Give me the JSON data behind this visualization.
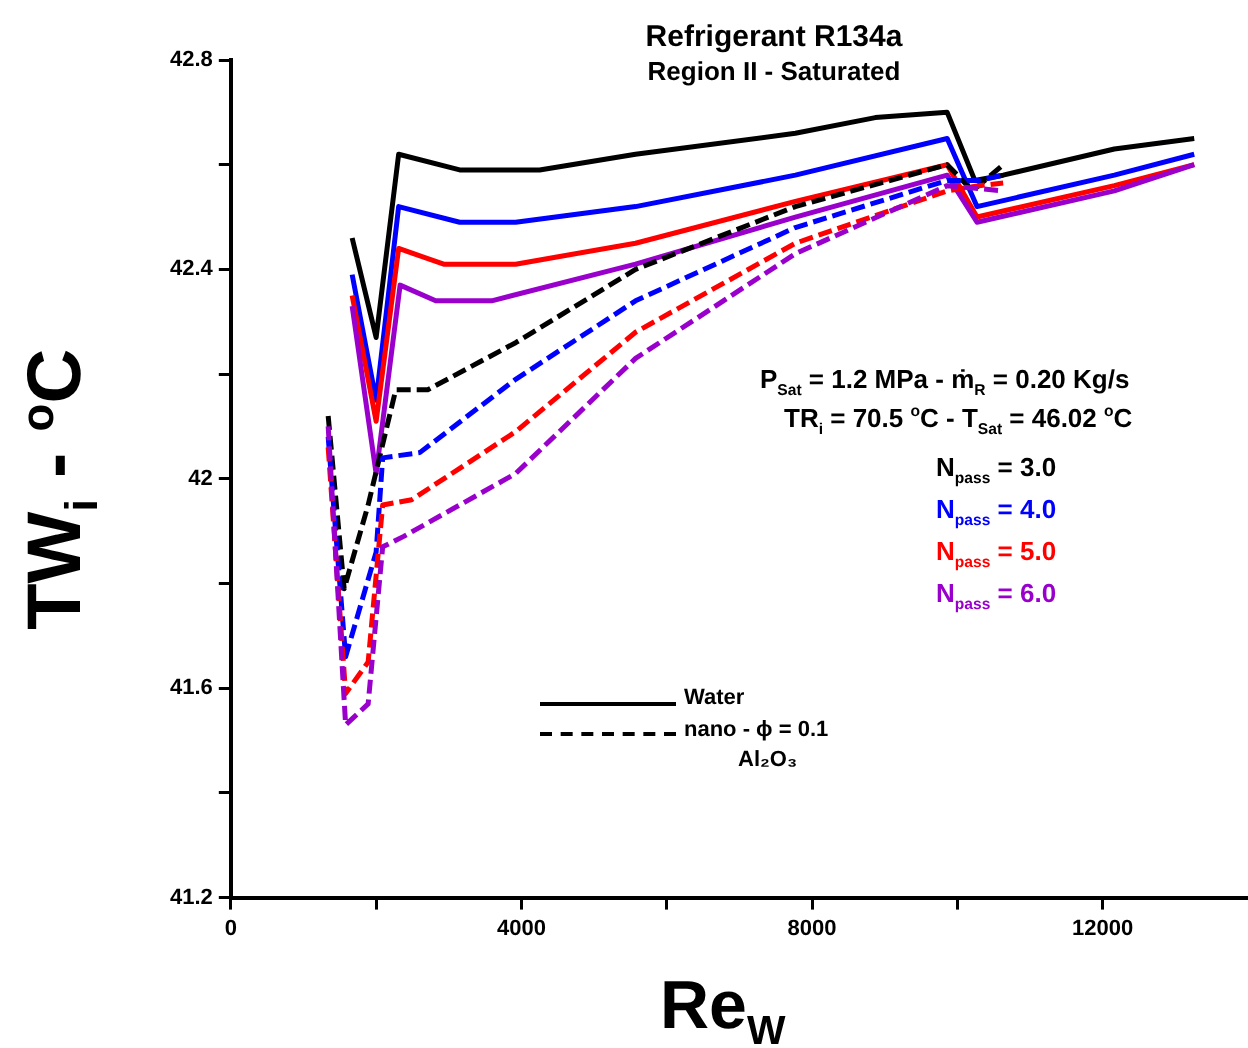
{
  "chart_data": {
    "type": "line",
    "title": "Refrigerant R134a",
    "subtitle": "Region II - Saturated",
    "xlabel": "Re$_{W}$",
    "ylabel": "TW$_{i}$ - $^{o}$C",
    "xlim": [
      0,
      14000
    ],
    "xticks": [
      0,
      {
        "value": 2000,
        "label": null
      },
      4000,
      {
        "value": 6000,
        "label": null
      },
      8000,
      {
        "value": 10000,
        "label": null
      },
      12000
    ],
    "ylim": [
      41.2,
      42.8
    ],
    "yticks": [
      41.2,
      {
        "value": 41.4,
        "label": null
      },
      41.6,
      {
        "value": 41.8,
        "label": null
      },
      42,
      {
        "value": 42.2,
        "label": null
      },
      42.4,
      {
        "value": 42.6,
        "label": null
      },
      42.8
    ],
    "grid": false,
    "legend": "right",
    "marker": "none",
    "annotations": [
      "P$_{Sat}$ = 1.2 MPa  - ṁ$_{R}$ = 0.20 Kg/s",
      "TR$_{i}$ = 70.5 $^{o}$C - T$_{Sat}$ = 46.02 $^{o}$C",
      "Water",
      "nano - ϕ = 0.1",
      "Al₂O₃"
    ],
    "series": [
      {
        "name": "N$_{pass}$ = 3.0",
        "color": "#000000",
        "line_style": "solid",
        "x": [
          1670,
          2000,
          2310,
          3150,
          4250,
          5570,
          7770,
          8870,
          9860,
          10240,
          10630,
          12160,
          13260
        ],
        "values": [
          42.46,
          42.27,
          42.62,
          42.59,
          42.59,
          42.62,
          42.66,
          42.69,
          42.7,
          42.57,
          42.58,
          42.63,
          42.65
        ]
      },
      {
        "name": "N$_{pass}$ = 4.0",
        "color": "#0000ff",
        "line_style": "solid",
        "x": [
          1670,
          2000,
          2310,
          3150,
          3920,
          5570,
          7770,
          9860,
          10270,
          12160,
          13260
        ],
        "values": [
          42.39,
          42.15,
          42.52,
          42.49,
          42.49,
          42.52,
          42.58,
          42.65,
          42.52,
          42.58,
          42.62
        ]
      },
      {
        "name": "N$_{pass}$ = 5.0",
        "color": "#ff0000",
        "line_style": "solid",
        "x": [
          1670,
          2000,
          2310,
          2930,
          3920,
          5570,
          7770,
          9860,
          10270,
          12160,
          13260
        ],
        "values": [
          42.35,
          42.11,
          42.44,
          42.41,
          42.41,
          42.45,
          42.53,
          42.6,
          42.5,
          42.56,
          42.6
        ]
      },
      {
        "name": "N$_{pass}$ = 6.0",
        "color": "#9900cc",
        "line_style": "solid",
        "x": [
          1670,
          2000,
          2330,
          2820,
          3590,
          5570,
          7770,
          9860,
          10270,
          12160,
          13260
        ],
        "values": [
          42.33,
          42.01,
          42.37,
          42.34,
          42.34,
          42.41,
          42.5,
          42.58,
          42.49,
          42.55,
          42.6
        ]
      },
      {
        "color": "#000000",
        "line_style": "dashed",
        "x": [
          1340,
          1560,
          1890,
          2270,
          2710,
          3920,
          5570,
          7770,
          9860,
          10210,
          10630
        ],
        "values": [
          42.12,
          41.79,
          41.95,
          42.17,
          42.17,
          42.26,
          42.4,
          42.52,
          42.6,
          42.55,
          42.6
        ]
      },
      {
        "color": "#0000ff",
        "line_style": "dashed",
        "x": [
          1340,
          1580,
          2000,
          2090,
          2600,
          3920,
          5570,
          7770,
          9860,
          10300,
          10630
        ],
        "values": [
          42.08,
          41.66,
          41.86,
          42.04,
          42.05,
          42.19,
          42.34,
          42.48,
          42.57,
          42.57,
          42.58
        ]
      },
      {
        "color": "#ff0000",
        "line_style": "dashed",
        "x": [
          1340,
          1580,
          1890,
          2090,
          2490,
          3920,
          5570,
          7770,
          9860,
          10300,
          10630
        ],
        "values": [
          42.06,
          41.59,
          41.65,
          41.95,
          41.96,
          42.09,
          42.28,
          42.45,
          42.55,
          42.56,
          42.565
        ]
      },
      {
        "color": "#9900cc",
        "line_style": "dashed",
        "x": [
          1340,
          1580,
          1890,
          2090,
          2380,
          3920,
          5570,
          7770,
          9860,
          10630
        ],
        "values": [
          42.1,
          41.53,
          41.57,
          41.87,
          41.89,
          42.01,
          42.23,
          42.43,
          42.56,
          42.55
        ]
      }
    ]
  }
}
